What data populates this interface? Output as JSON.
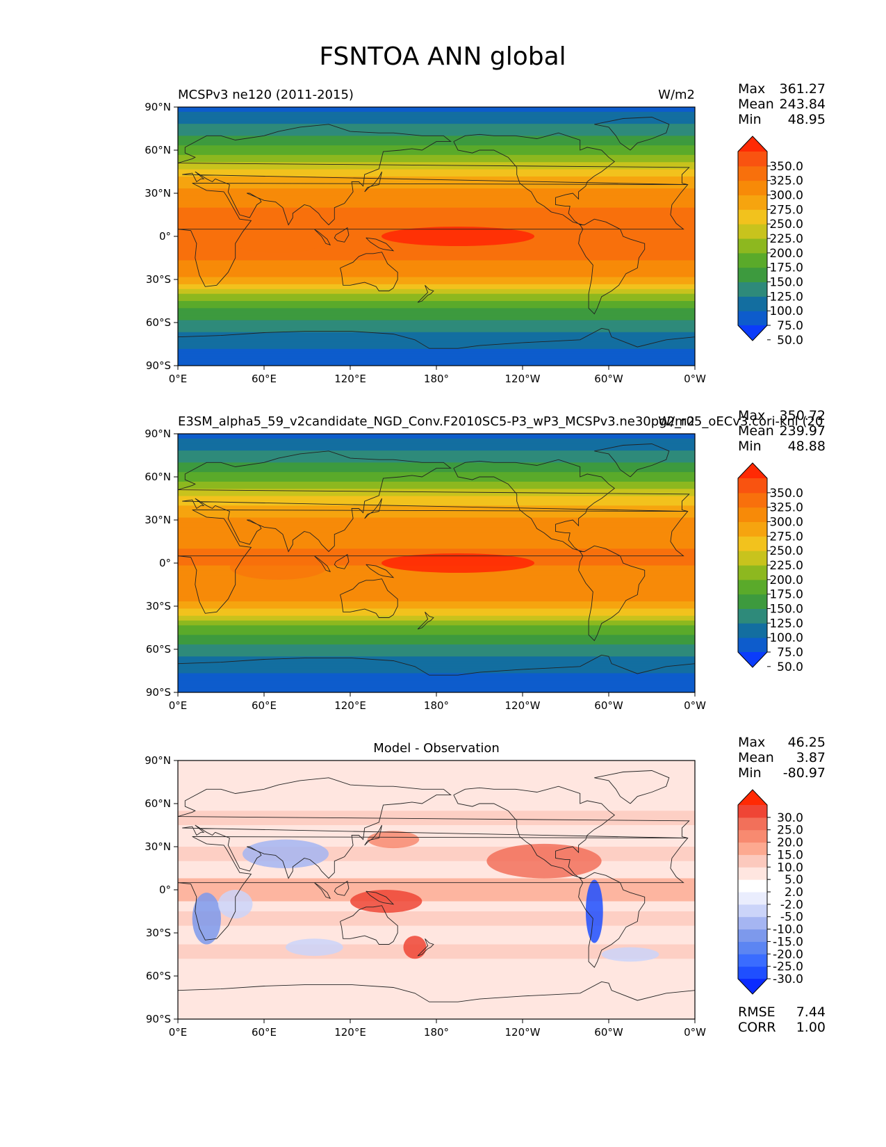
{
  "figure": {
    "title": "FSNTOA ANN global"
  },
  "colors": {
    "sequential": [
      "#0b3cfa",
      "#0d5ccc",
      "#136ea0",
      "#2e8a7a",
      "#3d9a3e",
      "#5aaa2a",
      "#8db81f",
      "#c8c31d",
      "#f2c21d",
      "#f6a40f",
      "#f78a08",
      "#f8700c",
      "#f95310",
      "#ff2a04"
    ],
    "diverging": [
      "#0b2bff",
      "#1f4fff",
      "#3a6cff",
      "#5c85f2",
      "#7d99ec",
      "#a5b5f2",
      "#cbd4f9",
      "#eaedfd",
      "#ffffff",
      "#ffe6e0",
      "#fcc9bd",
      "#fda990",
      "#f88a70",
      "#f2705a",
      "#ef4535",
      "#ff2a04"
    ]
  },
  "chart_data": [
    {
      "type": "heatmap",
      "panel": "test",
      "title_left": "MCSPv3 ne120 (2011-2015)",
      "title_right": "W/m2",
      "x_ticks": [
        "0°E",
        "60°E",
        "120°E",
        "180°",
        "120°W",
        "60°W",
        "0°W"
      ],
      "y_ticks": [
        "90°N",
        "60°N",
        "30°N",
        "0°",
        "30°S",
        "60°S",
        "90°S"
      ],
      "xlim": [
        0,
        360
      ],
      "ylim": [
        -90,
        90
      ],
      "stats": [
        {
          "label": "Max",
          "value": "361.27"
        },
        {
          "label": "Mean",
          "value": "243.84"
        },
        {
          "label": "Min",
          "value": "48.95"
        }
      ],
      "colorbar_levels": [
        "350.0",
        "325.0",
        "300.0",
        "275.0",
        "250.0",
        "225.0",
        "200.0",
        "175.0",
        "150.0",
        "125.0",
        "100.0",
        "75.0",
        "50.0"
      ],
      "zonal_profile_wm2": {
        "lat": [
          90,
          80,
          70,
          60,
          50,
          40,
          30,
          20,
          10,
          0,
          -10,
          -20,
          -30,
          -40,
          -50,
          -60,
          -70,
          -80,
          -90
        ],
        "value": [
          70,
          95,
          125,
          165,
          215,
          260,
          285,
          300,
          310,
          310,
          305,
          295,
          265,
          190,
          145,
          115,
          85,
          70,
          60
        ]
      }
    },
    {
      "type": "heatmap",
      "panel": "reference",
      "title_left": "E3SM_alpha5_59_v2candidate_NGD_Conv.F2010SC5-P3_wP3_MCSPv3.ne30pg2_r05_oECv3.cori-knl (20",
      "title_right": "W/m2",
      "x_ticks": [
        "0°E",
        "60°E",
        "120°E",
        "180°",
        "120°W",
        "60°W",
        "0°W"
      ],
      "y_ticks": [
        "90°N",
        "60°N",
        "30°N",
        "0°",
        "30°S",
        "60°S",
        "90°S"
      ],
      "xlim": [
        0,
        360
      ],
      "ylim": [
        -90,
        90
      ],
      "stats": [
        {
          "label": "Max",
          "value": "350.72"
        },
        {
          "label": "Mean",
          "value": "239.97"
        },
        {
          "label": "Min",
          "value": "48.88"
        }
      ],
      "colorbar_levels": [
        "350.0",
        "325.0",
        "300.0",
        "275.0",
        "250.0",
        "225.0",
        "200.0",
        "175.0",
        "150.0",
        "125.0",
        "100.0",
        "75.0",
        "50.0"
      ],
      "zonal_profile_wm2": {
        "lat": [
          90,
          80,
          70,
          60,
          50,
          40,
          30,
          20,
          10,
          0,
          -10,
          -20,
          -30,
          -40,
          -50,
          -60,
          -70,
          -80,
          -90
        ],
        "value": [
          70,
          95,
          125,
          165,
          212,
          255,
          280,
          293,
          300,
          300,
          297,
          290,
          262,
          188,
          143,
          113,
          84,
          68,
          55
        ]
      }
    },
    {
      "type": "heatmap",
      "panel": "difference",
      "title_center": "Model - Observation",
      "x_ticks": [
        "0°E",
        "60°E",
        "120°E",
        "180°",
        "120°W",
        "60°W",
        "0°W"
      ],
      "y_ticks": [
        "90°N",
        "60°N",
        "30°N",
        "0°",
        "30°S",
        "60°S",
        "90°S"
      ],
      "xlim": [
        0,
        360
      ],
      "ylim": [
        -90,
        90
      ],
      "stats": [
        {
          "label": "Max",
          "value": "46.25"
        },
        {
          "label": "Mean",
          "value": "3.87"
        },
        {
          "label": "Min",
          "value": "-80.97"
        }
      ],
      "colorbar_levels": [
        "30.0",
        "25.0",
        "20.0",
        "15.0",
        "10.0",
        "5.0",
        "2.0",
        "-2.0",
        "-5.0",
        "-10.0",
        "-15.0",
        "-20.0",
        "-25.0",
        "-30.0"
      ],
      "metrics": [
        {
          "label": "RMSE",
          "value": "7.44"
        },
        {
          "label": "CORR",
          "value": "1.00"
        }
      ]
    }
  ]
}
